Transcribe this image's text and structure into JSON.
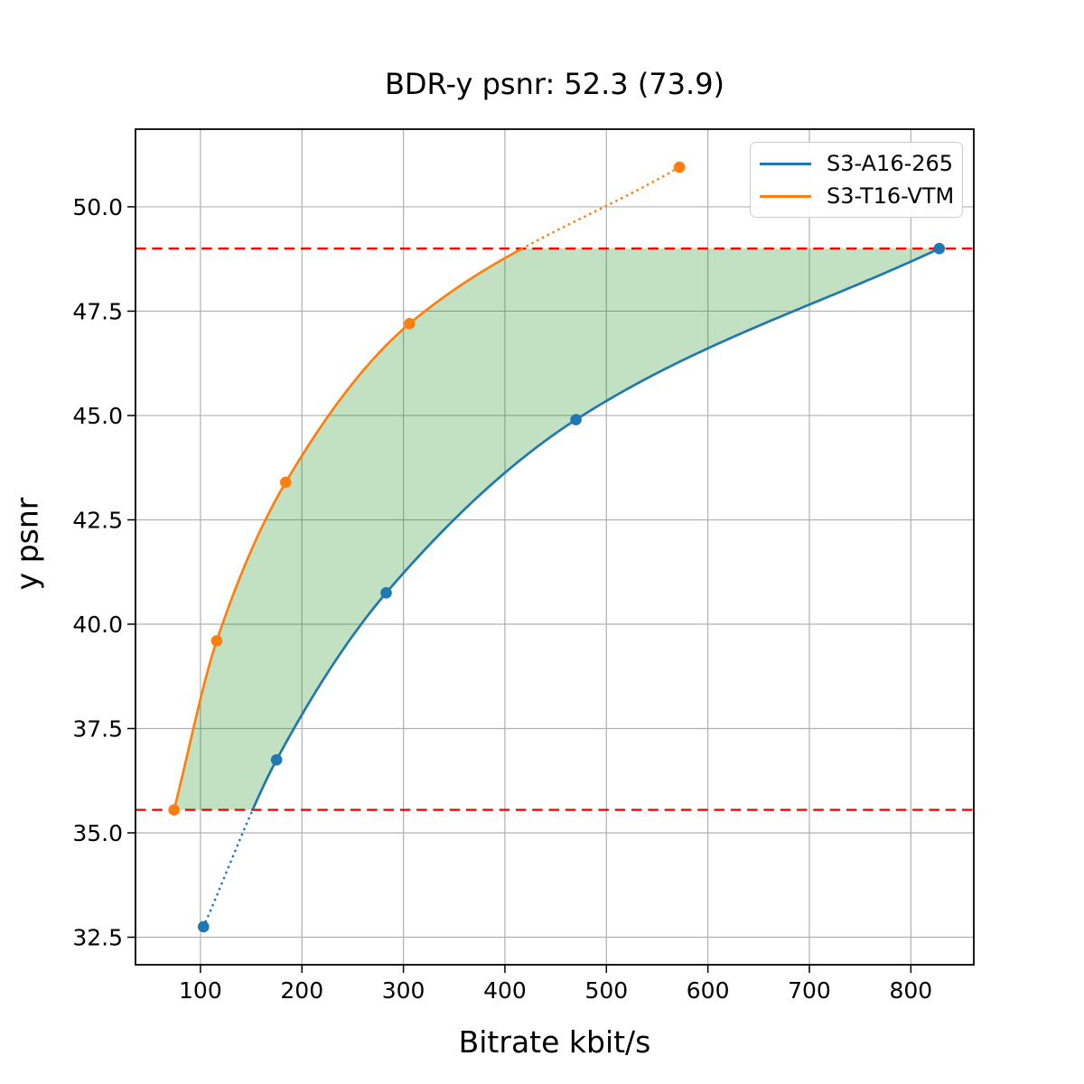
{
  "figure": {
    "title": "BDR-y psnr: 52.3 (73.9)",
    "bdr_value_shown": "52.3",
    "bdr_parenthetical_shown": "73.9"
  },
  "chart_data": {
    "type": "line",
    "title": "BDR-y psnr: 52.3 (73.9)",
    "xlabel": "Bitrate kbit/s",
    "ylabel": "y psnr",
    "xlim": [
      36,
      862
    ],
    "ylim": [
      31.84,
      51.86
    ],
    "x_ticks": [
      100,
      200,
      300,
      400,
      500,
      600,
      700,
      800
    ],
    "x_tick_labels": [
      "100",
      "200",
      "300",
      "400",
      "500",
      "600",
      "700",
      "800"
    ],
    "y_ticks": [
      32.5,
      35.0,
      37.5,
      40.0,
      42.5,
      45.0,
      47.5,
      50.0
    ],
    "y_tick_labels": [
      "32.5",
      "35.0",
      "37.5",
      "40.0",
      "42.5",
      "45.0",
      "47.5",
      "50.0"
    ],
    "grid": true,
    "grid_color": "#b0b0b0",
    "legend": {
      "position": "upper-right",
      "entries": [
        {
          "label": "S3-A16-265",
          "color": "#1f77b4"
        },
        {
          "label": "S3-T16-VTM",
          "color": "#ff7f0e"
        }
      ]
    },
    "series": [
      {
        "name": "S3-A16-265",
        "color": "#1f77b4",
        "marker": "circle",
        "points": [
          [
            103,
            32.75
          ],
          [
            175,
            36.75
          ],
          [
            283,
            40.75
          ],
          [
            470,
            44.9
          ],
          [
            828,
            49.0
          ]
        ],
        "style": "dotted below overlap region, solid inside overlap"
      },
      {
        "name": "S3-T16-VTM",
        "color": "#ff7f0e",
        "marker": "circle",
        "points": [
          [
            74,
            35.55
          ],
          [
            116,
            39.6
          ],
          [
            184,
            43.4
          ],
          [
            306,
            47.2
          ],
          [
            572,
            50.95
          ]
        ],
        "style": "solid inside overlap region, dotted above overlap"
      }
    ],
    "overlap_region": {
      "y_low": 35.55,
      "y_high": 49.0,
      "line_color": "#ff0000",
      "line_style": "dashed",
      "fill_color": "#008000",
      "fill_alpha": 0.24
    }
  }
}
